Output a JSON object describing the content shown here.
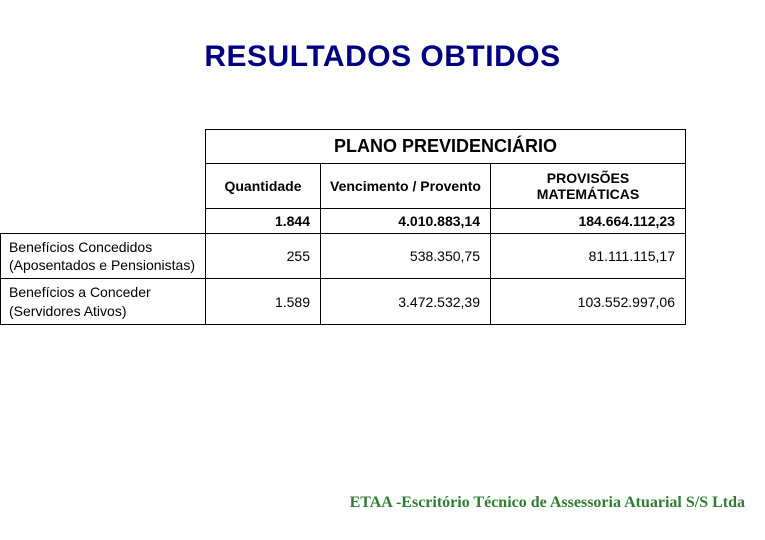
{
  "title": "RESULTADOS OBTIDOS",
  "table": {
    "span_header": "PLANO PREVIDENCIÁRIO",
    "columns": {
      "qty": "Quantidade",
      "venc": "Vencimento / Provento",
      "prov": "PROVISÕES MATEMÁTICAS"
    },
    "totals": {
      "qty": "1.844",
      "venc": "4.010.883,14",
      "prov": "184.664.112,23"
    },
    "rows": [
      {
        "label": "Benefícios Concedidos (Aposentados e Pensionistas)",
        "qty": "255",
        "venc": "538.350,75",
        "prov": "81.111.115,17"
      },
      {
        "label": "Benefícios a Conceder (Servidores Ativos)",
        "qty": "1.589",
        "venc": "3.472.532,39",
        "prov": "103.552.997,06"
      }
    ]
  },
  "footer": "ETAA -Escritório Técnico de Assessoria Atuarial S/S Ltda",
  "colors": {
    "title": "#000080",
    "footer": "#2e7d32",
    "border": "#000000",
    "background": "#ffffff"
  }
}
